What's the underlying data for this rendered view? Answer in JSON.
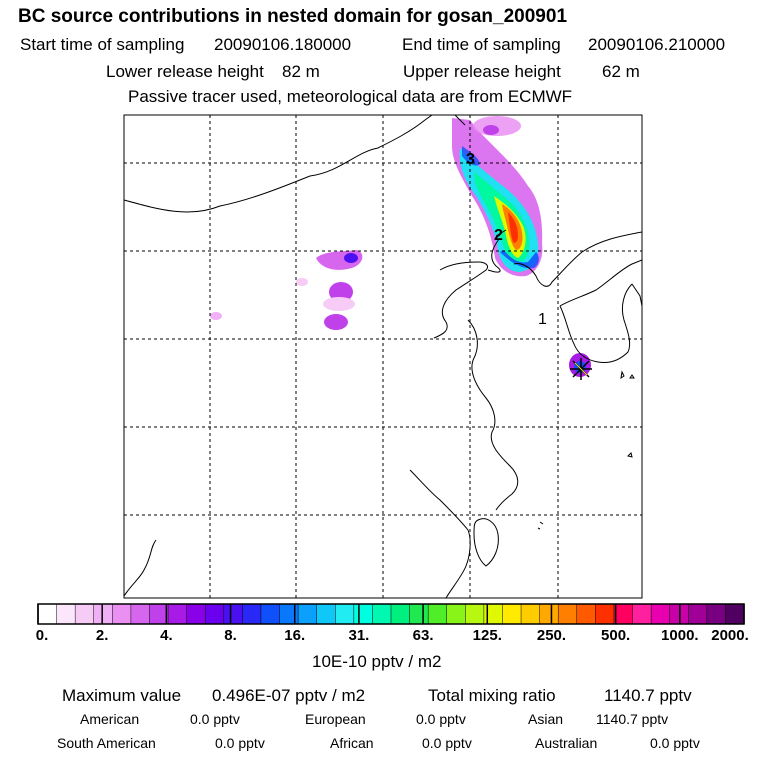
{
  "header": {
    "title": "BC  source contributions in nested domain for gosan_200901",
    "start_label": "Start time of sampling",
    "start_value": "20090106.180000",
    "end_label": "End time of sampling",
    "end_value": "20090106.210000",
    "lower_label": "Lower release height",
    "lower_value": "82 m",
    "upper_label": "Upper release height",
    "upper_value": "62 m",
    "note": "Passive tracer used, meteorological data are from ECMWF"
  },
  "chart_data": {
    "type": "heatmap",
    "title": "BC  source contributions in nested domain for gosan_200901",
    "units": "10E-10 pptv / m2",
    "colorbar_ticks": [
      "0.",
      "2.",
      "4.",
      "8.",
      "16.",
      "31.",
      "63.",
      "125.",
      "250.",
      "500.",
      "1000.",
      "2000."
    ],
    "colorbar_colors": [
      "#ffffff",
      "#fbe6fb",
      "#f6ccf7",
      "#f0b0f5",
      "#e990f2",
      "#d766ee",
      "#c040ea",
      "#a81ae6",
      "#8a00e8",
      "#6a00ee",
      "#4a10f2",
      "#2a28f6",
      "#1050fa",
      "#0a78fc",
      "#0aa0fc",
      "#10c8f8",
      "#20ecf2",
      "#00ffe0",
      "#00f8b0",
      "#00f080",
      "#20e850",
      "#50ee28",
      "#88f418",
      "#b8f810",
      "#e0f800",
      "#ffea00",
      "#ffcc00",
      "#ffa800",
      "#ff8000",
      "#ff5a00",
      "#ff3000",
      "#ff0060",
      "#ff20a0",
      "#e800b0",
      "#c800a8",
      "#a00098",
      "#780080",
      "#500060"
    ],
    "plume_markers": [
      {
        "label": "1",
        "lon": 125.5,
        "lat": 35.5
      },
      {
        "label": "2",
        "lon": 122.6,
        "lat": 39.2
      },
      {
        "label": "3",
        "lon": 121.3,
        "lat": 42.0
      }
    ],
    "receptor": {
      "name": "Gosan",
      "lon": 126.2,
      "lat": 33.3
    },
    "grid": true
  },
  "summary": {
    "max_label": "Maximum value",
    "max_value": "0.496E-07 pptv / m2",
    "total_label": "Total mixing ratio",
    "total_value": "1140.7 pptv"
  },
  "regions": [
    {
      "name": "American",
      "value": "0.0 pptv"
    },
    {
      "name": "European",
      "value": "0.0 pptv"
    },
    {
      "name": "Asian",
      "value": "1140.7 pptv"
    },
    {
      "name": "South American",
      "value": "0.0 pptv"
    },
    {
      "name": "African",
      "value": "0.0 pptv"
    },
    {
      "name": "Australian",
      "value": "0.0 pptv"
    }
  ]
}
